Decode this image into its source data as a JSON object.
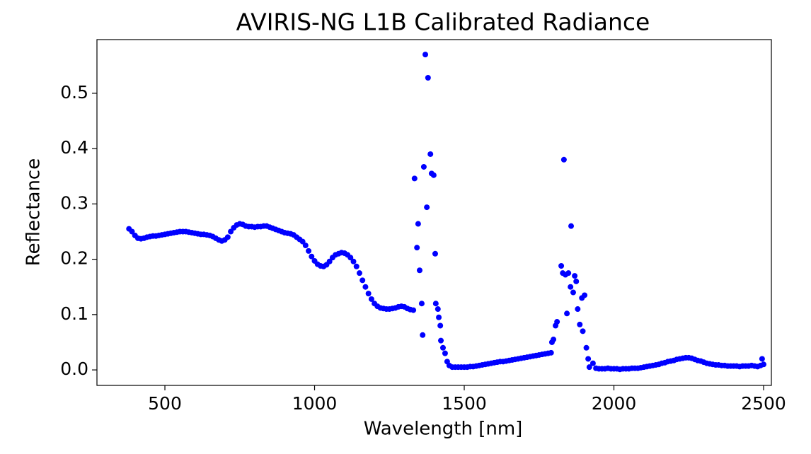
{
  "chart_data": {
    "type": "scatter",
    "title": "AVIRIS-NG L1B Calibrated Radiance",
    "xlabel": "Wavelength [nm]",
    "ylabel": "Reflectance",
    "color": "#0000ff",
    "xlim": [
      273,
      2526
    ],
    "ylim": [
      -0.028,
      0.597
    ],
    "xticks": [
      500,
      1000,
      1500,
      2000,
      2500
    ],
    "yticks": [
      {
        "value": 0,
        "label": "0.0"
      },
      0.1,
      0.2,
      0.3,
      0.4,
      0.5
    ],
    "x": [
      380,
      390,
      400,
      410,
      420,
      430,
      440,
      450,
      460,
      470,
      480,
      490,
      500,
      510,
      520,
      530,
      540,
      550,
      560,
      570,
      580,
      590,
      600,
      610,
      620,
      630,
      640,
      650,
      660,
      670,
      680,
      690,
      700,
      710,
      720,
      730,
      740,
      750,
      760,
      770,
      780,
      790,
      800,
      810,
      820,
      830,
      840,
      850,
      860,
      870,
      880,
      890,
      900,
      910,
      920,
      930,
      940,
      950,
      960,
      970,
      980,
      990,
      1000,
      1010,
      1020,
      1030,
      1040,
      1050,
      1060,
      1070,
      1080,
      1090,
      1100,
      1110,
      1120,
      1130,
      1140,
      1150,
      1160,
      1170,
      1180,
      1190,
      1200,
      1210,
      1220,
      1230,
      1240,
      1250,
      1260,
      1270,
      1280,
      1290,
      1300,
      1310,
      1320,
      1330,
      1334,
      1342,
      1346,
      1351,
      1358,
      1361,
      1365,
      1370,
      1375,
      1379,
      1387,
      1391,
      1398,
      1403,
      1405,
      1412,
      1415,
      1420,
      1422,
      1429,
      1436,
      1443,
      1450,
      1460,
      1470,
      1480,
      1490,
      1500,
      1510,
      1520,
      1530,
      1540,
      1550,
      1560,
      1570,
      1580,
      1590,
      1600,
      1610,
      1620,
      1630,
      1640,
      1650,
      1660,
      1670,
      1680,
      1690,
      1700,
      1710,
      1720,
      1730,
      1740,
      1750,
      1760,
      1770,
      1780,
      1790,
      1793,
      1798,
      1805,
      1810,
      1824,
      1829,
      1833,
      1838,
      1843,
      1848,
      1855,
      1857,
      1864,
      1869,
      1874,
      1879,
      1886,
      1893,
      1896,
      1902,
      1908,
      1914,
      1918,
      1930,
      1940,
      1950,
      1960,
      1970,
      1980,
      1990,
      2000,
      2010,
      2020,
      2030,
      2040,
      2050,
      2060,
      2070,
      2080,
      2090,
      2100,
      2110,
      2120,
      2130,
      2140,
      2150,
      2160,
      2170,
      2180,
      2190,
      2200,
      2210,
      2220,
      2230,
      2240,
      2250,
      2260,
      2270,
      2280,
      2290,
      2300,
      2310,
      2320,
      2330,
      2340,
      2350,
      2360,
      2370,
      2380,
      2390,
      2400,
      2410,
      2420,
      2430,
      2440,
      2450,
      2460,
      2470,
      2480,
      2490,
      2495,
      2500
    ],
    "values": [
      0.255,
      0.25,
      0.243,
      0.238,
      0.237,
      0.238,
      0.24,
      0.241,
      0.242,
      0.242,
      0.243,
      0.244,
      0.245,
      0.246,
      0.247,
      0.248,
      0.249,
      0.25,
      0.25,
      0.25,
      0.249,
      0.248,
      0.247,
      0.246,
      0.245,
      0.245,
      0.244,
      0.243,
      0.241,
      0.238,
      0.235,
      0.233,
      0.235,
      0.24,
      0.25,
      0.257,
      0.262,
      0.264,
      0.263,
      0.26,
      0.259,
      0.259,
      0.258,
      0.259,
      0.259,
      0.26,
      0.26,
      0.258,
      0.256,
      0.254,
      0.252,
      0.25,
      0.248,
      0.247,
      0.246,
      0.244,
      0.24,
      0.236,
      0.232,
      0.225,
      0.215,
      0.205,
      0.197,
      0.191,
      0.188,
      0.187,
      0.19,
      0.196,
      0.203,
      0.208,
      0.21,
      0.212,
      0.211,
      0.208,
      0.203,
      0.196,
      0.187,
      0.175,
      0.162,
      0.15,
      0.138,
      0.128,
      0.12,
      0.115,
      0.112,
      0.111,
      0.11,
      0.11,
      0.111,
      0.112,
      0.114,
      0.115,
      0.114,
      0.111,
      0.109,
      0.108,
      0.346,
      0.221,
      0.264,
      0.18,
      0.12,
      0.063,
      0.367,
      0.57,
      0.294,
      0.528,
      0.39,
      0.355,
      0.352,
      0.21,
      0.12,
      0.11,
      0.095,
      0.08,
      0.053,
      0.04,
      0.03,
      0.015,
      0.008,
      0.005,
      0.005,
      0.005,
      0.005,
      0.005,
      0.005,
      0.006,
      0.006,
      0.007,
      0.008,
      0.009,
      0.01,
      0.011,
      0.012,
      0.013,
      0.014,
      0.015,
      0.015,
      0.016,
      0.017,
      0.018,
      0.019,
      0.02,
      0.021,
      0.022,
      0.023,
      0.024,
      0.025,
      0.026,
      0.027,
      0.028,
      0.029,
      0.03,
      0.031,
      0.05,
      0.055,
      0.08,
      0.087,
      0.188,
      0.175,
      0.38,
      0.172,
      0.102,
      0.175,
      0.15,
      0.26,
      0.14,
      0.17,
      0.16,
      0.11,
      0.082,
      0.13,
      0.07,
      0.135,
      0.04,
      0.02,
      0.005,
      0.012,
      0.003,
      0.002,
      0.002,
      0.002,
      0.003,
      0.002,
      0.002,
      0.002,
      0.001,
      0.002,
      0.002,
      0.002,
      0.003,
      0.003,
      0.003,
      0.004,
      0.005,
      0.006,
      0.007,
      0.008,
      0.009,
      0.01,
      0.012,
      0.013,
      0.015,
      0.016,
      0.017,
      0.019,
      0.02,
      0.021,
      0.022,
      0.022,
      0.021,
      0.019,
      0.017,
      0.016,
      0.014,
      0.012,
      0.011,
      0.01,
      0.009,
      0.009,
      0.008,
      0.008,
      0.007,
      0.007,
      0.007,
      0.007,
      0.006,
      0.007,
      0.007,
      0.007,
      0.008,
      0.007,
      0.006,
      0.008,
      0.02,
      0.01
    ]
  }
}
